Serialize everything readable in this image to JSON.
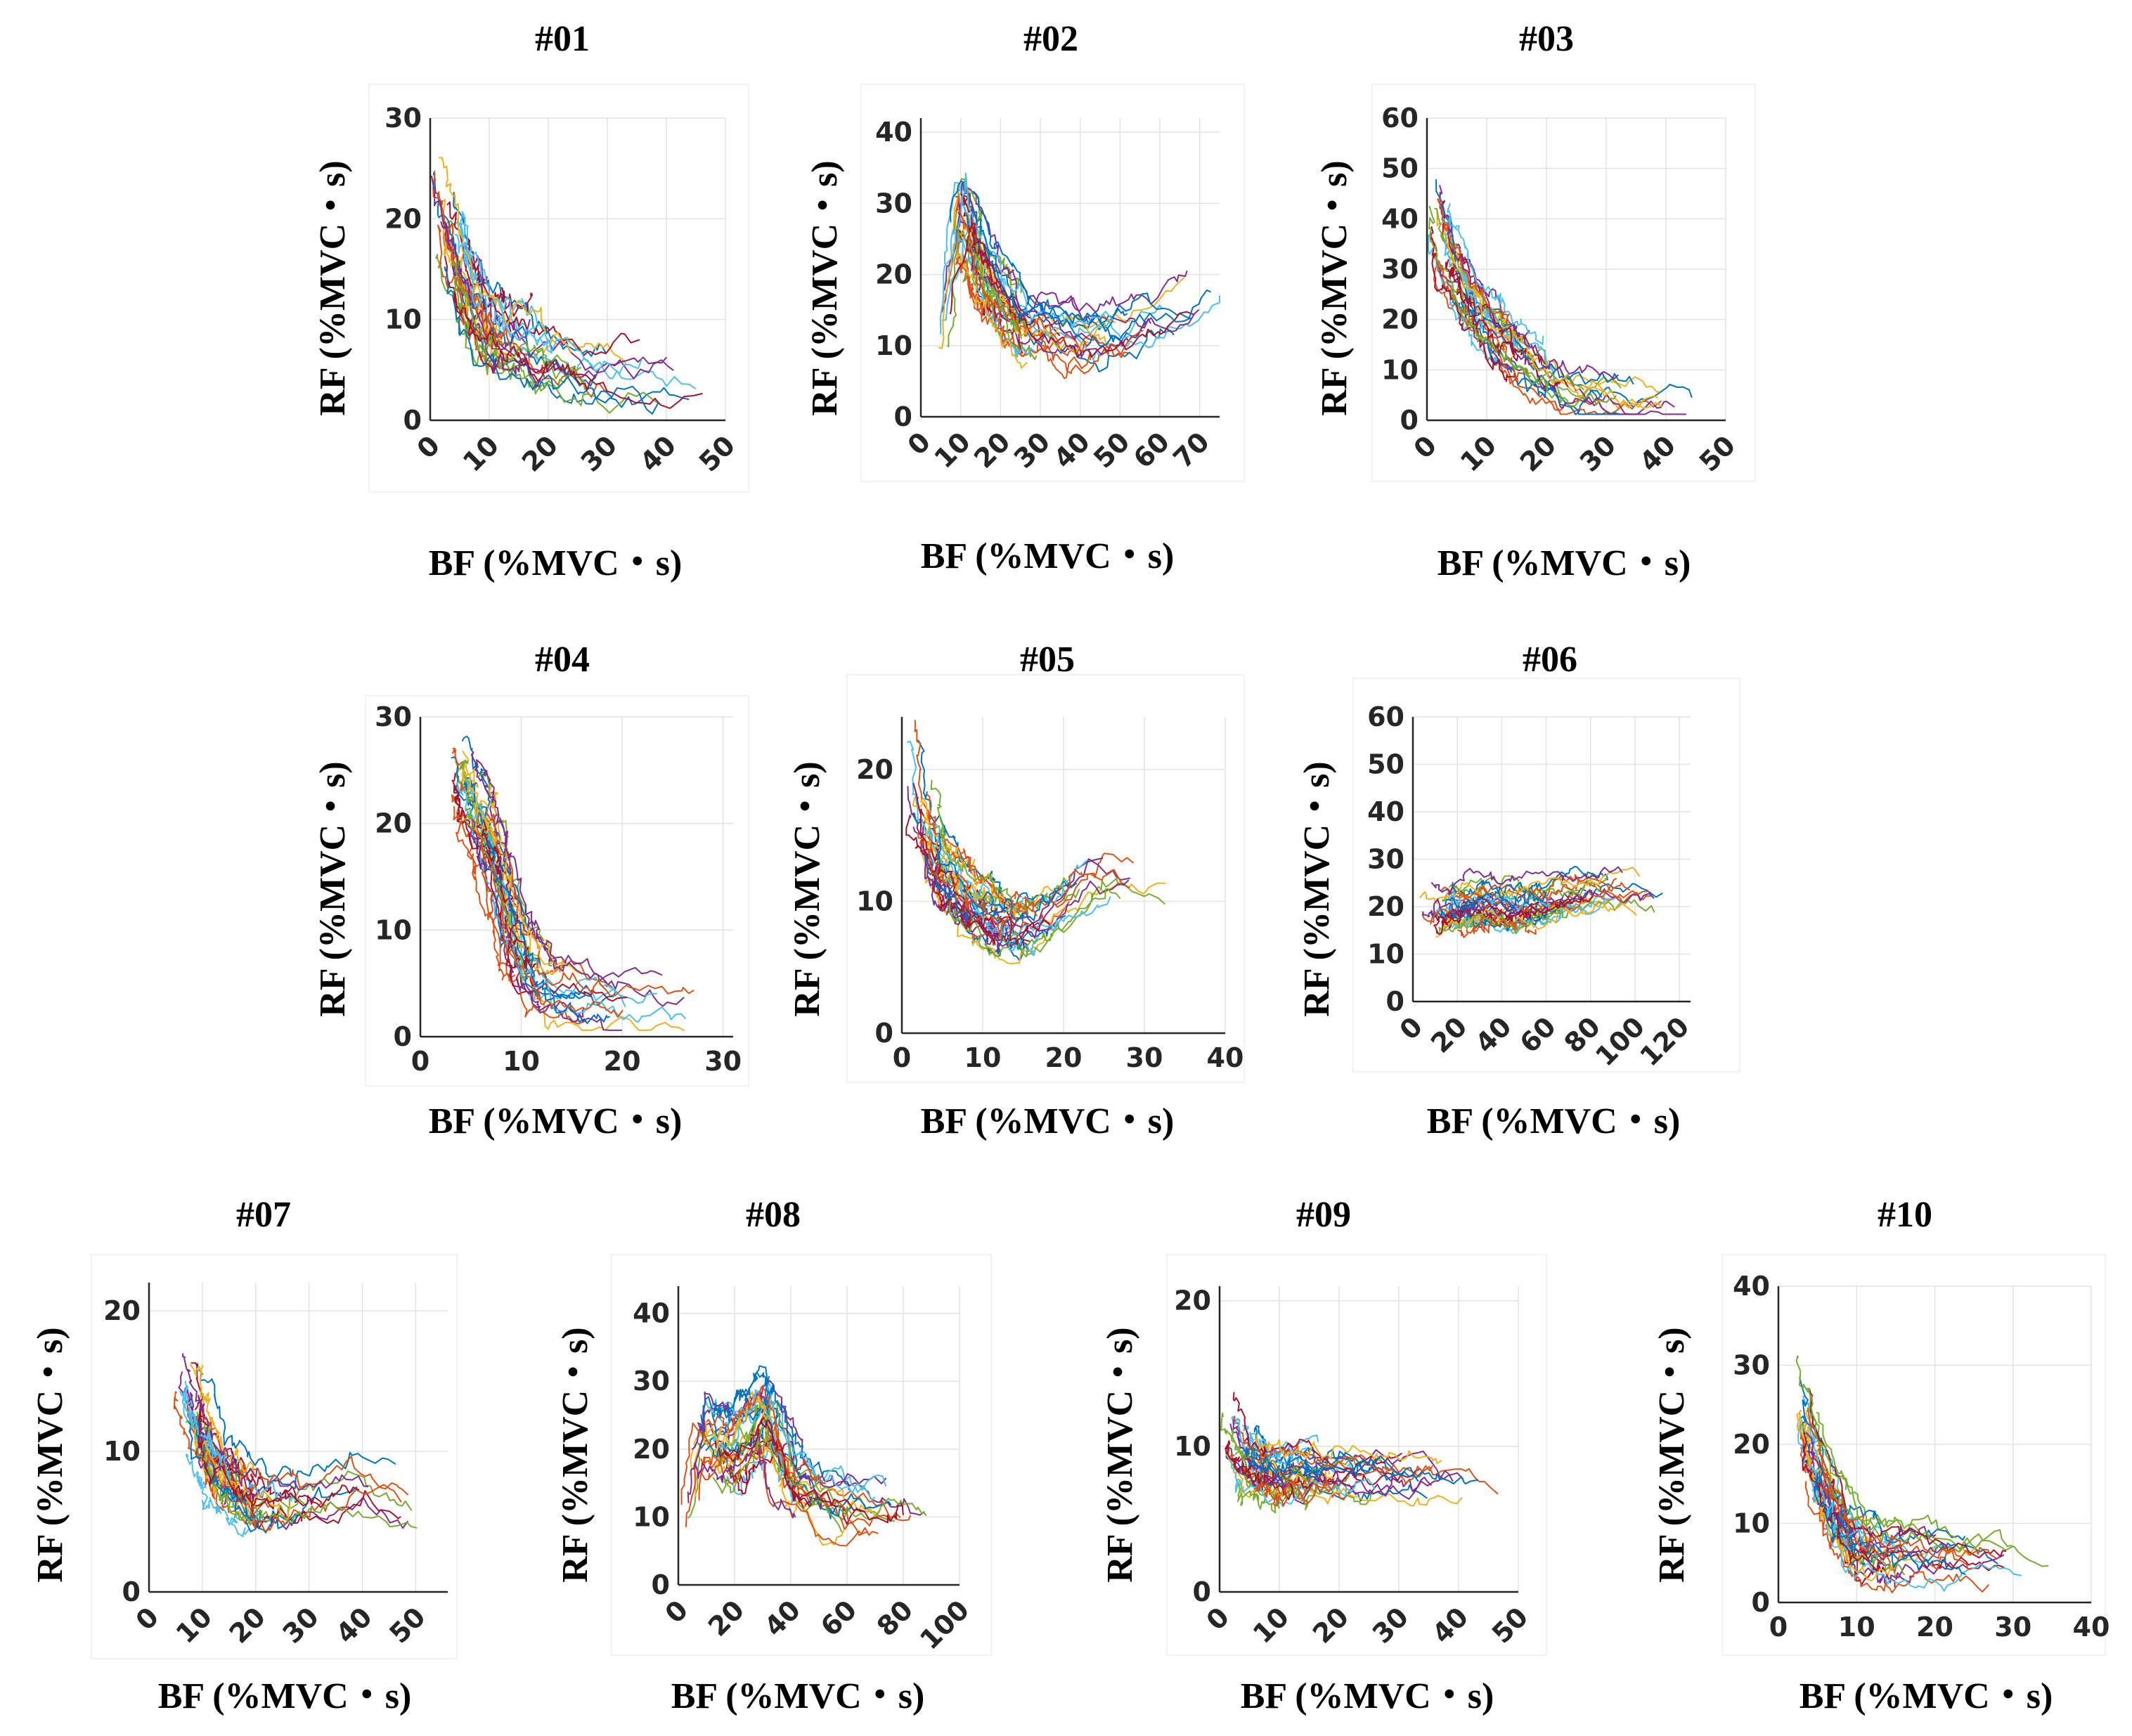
{
  "figure": {
    "colors": [
      "#0072BD",
      "#D95319",
      "#EDB120",
      "#7E2F8E",
      "#77AC30",
      "#4DBEEE",
      "#A2142F"
    ]
  },
  "chart_data": [
    {
      "id": "#01",
      "type": "line",
      "title": "#01",
      "xlabel": "BF (%MVC・s)",
      "ylabel": "RF (%MVC・s)",
      "xlim": [
        0,
        50
      ],
      "ylim": [
        0,
        30
      ],
      "xticks": [
        0,
        10,
        20,
        30,
        40,
        50
      ],
      "yticks": [
        0,
        10,
        20,
        30
      ],
      "xtick_labels": [
        "0",
        "10",
        "20",
        "30",
        "40",
        "50"
      ],
      "ytick_labels": [
        "0",
        "10",
        "20",
        "30"
      ],
      "rotated_xticks": true,
      "grid": true,
      "trend": {
        "n": 28,
        "points": [
          [
            1,
            24
          ],
          [
            4,
            17
          ],
          [
            7,
            12
          ],
          [
            12,
            8
          ],
          [
            20,
            6
          ],
          [
            30,
            5
          ],
          [
            44,
            4.5
          ]
        ],
        "spread": [
          1.8,
          4.0
        ]
      },
      "series_description": "about 28 overlapping trial trajectories (RF vs BF)"
    },
    {
      "id": "#02",
      "type": "line",
      "title": "#02",
      "xlabel": "BF (%MVC・s)",
      "ylabel": "RF (%MVC・s)",
      "xlim": [
        0,
        75
      ],
      "ylim": [
        0,
        42
      ],
      "xticks": [
        0,
        10,
        20,
        30,
        40,
        50,
        60,
        70
      ],
      "yticks": [
        0,
        10,
        20,
        30,
        40
      ],
      "xtick_labels": [
        "0",
        "10",
        "20",
        "30",
        "40",
        "50",
        "60",
        "70"
      ],
      "ytick_labels": [
        "0",
        "10",
        "20",
        "30",
        "40"
      ],
      "rotated_xticks": true,
      "grid": true,
      "trend": {
        "n": 30,
        "points": [
          [
            4,
            8
          ],
          [
            10,
            30
          ],
          [
            16,
            20
          ],
          [
            25,
            13
          ],
          [
            40,
            11
          ],
          [
            55,
            12
          ],
          [
            72,
            17
          ]
        ],
        "spread": [
          3.0,
          5.0
        ]
      },
      "series_description": "about 30 overlapping trial trajectories (RF vs BF)"
    },
    {
      "id": "#03",
      "type": "line",
      "title": "#03",
      "xlabel": "BF (%MVC・s)",
      "ylabel": "RF (%MVC・s)",
      "xlim": [
        0,
        50
      ],
      "ylim": [
        0,
        60
      ],
      "xticks": [
        0,
        10,
        20,
        30,
        40,
        50
      ],
      "yticks": [
        0,
        10,
        20,
        30,
        40,
        50,
        60
      ],
      "xtick_labels": [
        "0",
        "10",
        "20",
        "30",
        "40",
        "50"
      ],
      "ytick_labels": [
        "0",
        "10",
        "20",
        "30",
        "40",
        "50",
        "60"
      ],
      "rotated_xticks": true,
      "grid": true,
      "trend": {
        "n": 28,
        "points": [
          [
            1,
            45
          ],
          [
            3,
            32
          ],
          [
            8,
            22
          ],
          [
            15,
            13
          ],
          [
            22,
            7
          ],
          [
            32,
            4.5
          ],
          [
            45,
            3.5
          ]
        ],
        "spread": [
          2.0,
          6.0
        ]
      },
      "series_description": "about 28 overlapping trial trajectories (RF vs BF)"
    },
    {
      "id": "#04",
      "type": "line",
      "title": "#04",
      "xlabel": "BF (%MVC・s)",
      "ylabel": "RF (%MVC・s)",
      "xlim": [
        0,
        31
      ],
      "ylim": [
        0,
        30
      ],
      "xticks": [
        0,
        10,
        20,
        30
      ],
      "yticks": [
        0,
        10,
        20,
        30
      ],
      "xtick_labels": [
        "0",
        "10",
        "20",
        "30"
      ],
      "ytick_labels": [
        "0",
        "10",
        "20",
        "30"
      ],
      "rotated_xticks": false,
      "grid": true,
      "trend": {
        "n": 32,
        "points": [
          [
            3.5,
            26
          ],
          [
            5,
            22
          ],
          [
            7,
            17
          ],
          [
            9,
            9
          ],
          [
            12,
            4.5
          ],
          [
            18,
            3.5
          ],
          [
            26,
            2.5
          ]
        ],
        "spread": [
          1.5,
          3.0
        ]
      },
      "series_description": "about 32 overlapping trial trajectories (RF vs BF)"
    },
    {
      "id": "#05",
      "type": "line",
      "title": "#05",
      "xlabel": "BF (%MVC・s)",
      "ylabel": "RF (%MVC・s)",
      "xlim": [
        0,
        40
      ],
      "ylim": [
        0,
        24
      ],
      "xticks": [
        0,
        10,
        20,
        30,
        40
      ],
      "yticks": [
        0,
        10,
        20
      ],
      "xtick_labels": [
        "0",
        "10",
        "20",
        "30",
        "40"
      ],
      "ytick_labels": [
        "0",
        "10",
        "20"
      ],
      "rotated_xticks": false,
      "grid": true,
      "trend": {
        "n": 30,
        "points": [
          [
            1,
            21
          ],
          [
            3,
            15
          ],
          [
            6,
            11
          ],
          [
            10,
            9
          ],
          [
            14,
            8
          ],
          [
            19,
            9
          ],
          [
            25,
            12
          ],
          [
            33,
            11.5
          ]
        ],
        "spread": [
          2.0,
          2.5
        ]
      },
      "series_description": "about 30 overlapping trial trajectories (RF vs BF)"
    },
    {
      "id": "#06",
      "type": "line",
      "title": "#06",
      "xlabel": "BF (%MVC・s)",
      "ylabel": "RF (%MVC・s)",
      "xlim": [
        0,
        125
      ],
      "ylim": [
        0,
        60
      ],
      "xticks": [
        0,
        20,
        40,
        60,
        80,
        100,
        120
      ],
      "yticks": [
        0,
        10,
        20,
        30,
        40,
        50,
        60
      ],
      "xtick_labels": [
        "0",
        "20",
        "40",
        "60",
        "80",
        "100",
        "120"
      ],
      "ytick_labels": [
        "0",
        "10",
        "20",
        "30",
        "40",
        "50",
        "60"
      ],
      "rotated_xticks": true,
      "grid": true,
      "trend": {
        "n": 30,
        "points": [
          [
            3,
            18
          ],
          [
            15,
            20
          ],
          [
            30,
            21
          ],
          [
            50,
            20
          ],
          [
            70,
            22
          ],
          [
            90,
            24
          ],
          [
            115,
            22
          ]
        ],
        "spread": [
          5.0,
          5.0
        ]
      },
      "series_description": "about 30 overlapping trial trajectories (RF vs BF)"
    },
    {
      "id": "#07",
      "type": "line",
      "title": "#07",
      "xlabel": "BF (%MVC・s)",
      "ylabel": "RF (%MVC・s)",
      "xlim": [
        0,
        56
      ],
      "ylim": [
        0,
        22
      ],
      "xticks": [
        0,
        10,
        20,
        30,
        40,
        50
      ],
      "yticks": [
        0,
        10,
        20
      ],
      "xtick_labels": [
        "0",
        "10",
        "20",
        "30",
        "40",
        "50"
      ],
      "ytick_labels": [
        "0",
        "10",
        "20"
      ],
      "rotated_xticks": true,
      "grid": true,
      "trend": {
        "n": 28,
        "points": [
          [
            6,
            16
          ],
          [
            9,
            12
          ],
          [
            13,
            9
          ],
          [
            18,
            7
          ],
          [
            26,
            7
          ],
          [
            38,
            8
          ],
          [
            52,
            6
          ]
        ],
        "spread": [
          2.5,
          2.5
        ]
      },
      "series_description": "about 28 overlapping trial trajectories (RF vs BF)"
    },
    {
      "id": "#08",
      "type": "line",
      "title": "#08",
      "xlabel": "BF (%MVC・s)",
      "ylabel": "RF (%MVC・s)",
      "xlim": [
        0,
        100
      ],
      "ylim": [
        0,
        44
      ],
      "xticks": [
        0,
        20,
        40,
        60,
        80,
        100
      ],
      "yticks": [
        0,
        10,
        20,
        30,
        40
      ],
      "xtick_labels": [
        "0",
        "20",
        "40",
        "60",
        "80",
        "100"
      ],
      "ytick_labels": [
        "0",
        "10",
        "20",
        "30",
        "40"
      ],
      "rotated_xticks": true,
      "grid": true,
      "trend": {
        "n": 30,
        "points": [
          [
            3,
            8
          ],
          [
            8,
            22
          ],
          [
            20,
            20
          ],
          [
            32,
            26
          ],
          [
            40,
            16
          ],
          [
            55,
            12
          ],
          [
            75,
            11
          ],
          [
            85,
            10
          ]
        ],
        "spread": [
          4.0,
          5.0
        ]
      },
      "series_description": "about 30 overlapping trial trajectories (RF vs BF)"
    },
    {
      "id": "#09",
      "type": "line",
      "title": "#09",
      "xlabel": "BF (%MVC・s)",
      "ylabel": "RF (%MVC・s)",
      "xlim": [
        0,
        50
      ],
      "ylim": [
        0,
        21
      ],
      "xticks": [
        0,
        10,
        20,
        30,
        40,
        50
      ],
      "yticks": [
        0,
        10,
        20
      ],
      "xtick_labels": [
        "0",
        "10",
        "20",
        "30",
        "40",
        "50"
      ],
      "ytick_labels": [
        "0",
        "10",
        "20"
      ],
      "rotated_xticks": true,
      "grid": true,
      "trend": {
        "n": 30,
        "points": [
          [
            1,
            12
          ],
          [
            4,
            9
          ],
          [
            8,
            8
          ],
          [
            15,
            8
          ],
          [
            25,
            8
          ],
          [
            35,
            7.5
          ],
          [
            46,
            6.5
          ]
        ],
        "spread": [
          2.0,
          2.0
        ]
      },
      "series_description": "about 30 overlapping trial trajectories (RF vs BF)"
    },
    {
      "id": "#10",
      "type": "line",
      "title": "#10",
      "xlabel": "BF (%MVC・s)",
      "ylabel": "RF (%MVC・s)",
      "xlim": [
        0,
        40
      ],
      "ylim": [
        0,
        40
      ],
      "xticks": [
        0,
        10,
        20,
        30,
        40
      ],
      "yticks": [
        0,
        10,
        20,
        30,
        40
      ],
      "xtick_labels": [
        "0",
        "10",
        "20",
        "30",
        "40"
      ],
      "ytick_labels": [
        "0",
        "10",
        "20",
        "30",
        "40"
      ],
      "rotated_xticks": false,
      "grid": true,
      "trend": {
        "n": 30,
        "points": [
          [
            2.5,
            27
          ],
          [
            4,
            20
          ],
          [
            7,
            12
          ],
          [
            10,
            7
          ],
          [
            16,
            6
          ],
          [
            24,
            5.5
          ],
          [
            33,
            5
          ]
        ],
        "spread": [
          1.5,
          4.0
        ]
      },
      "series_description": "about 30 overlapping trial trajectories (RF vs BF)"
    }
  ]
}
